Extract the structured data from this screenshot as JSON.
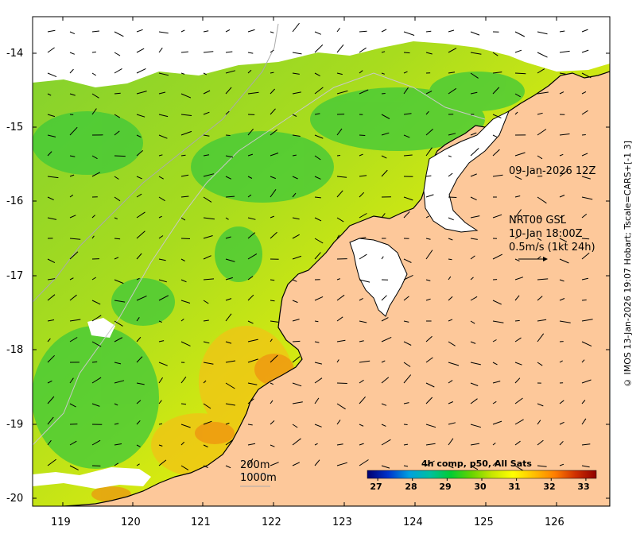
{
  "map": {
    "lat_ticks": [
      "-14",
      "-15",
      "-16",
      "-17",
      "-18",
      "-19",
      "-20"
    ],
    "lon_ticks": [
      "119",
      "120",
      "121",
      "122",
      "123",
      "124",
      "125",
      "126"
    ],
    "colors": {
      "land": "#fdc89a",
      "coast": "#000000",
      "cloud": "#ffffff",
      "bathy": "#bbbbbb"
    }
  },
  "annotations": {
    "image_time": "09-Jan-2026 12Z",
    "current_source": "NRT00 GSL",
    "current_time": "10-Jan 18:00Z",
    "scale_arrow": "0.5m/s (1kt 24h)",
    "isobath_200": "200m",
    "isobath_1000": "1000m"
  },
  "colorbar": {
    "title": "4h comp, p50, All Sats",
    "ticks": [
      "27",
      "28",
      "29",
      "30",
      "31",
      "32",
      "33"
    ],
    "range": [
      26.7,
      33.3
    ],
    "colors": [
      "#000070",
      "#0033cc",
      "#00a0e0",
      "#00c0a0",
      "#00cc33",
      "#66d400",
      "#c8e600",
      "#ffff00",
      "#ffc000",
      "#ff7f00",
      "#d03000",
      "#900000"
    ]
  },
  "sidebar": {
    "credit": "© IMOS 13-Jan-2026 19:07 Hobart; Tscale=CARS+[-1 3]"
  }
}
